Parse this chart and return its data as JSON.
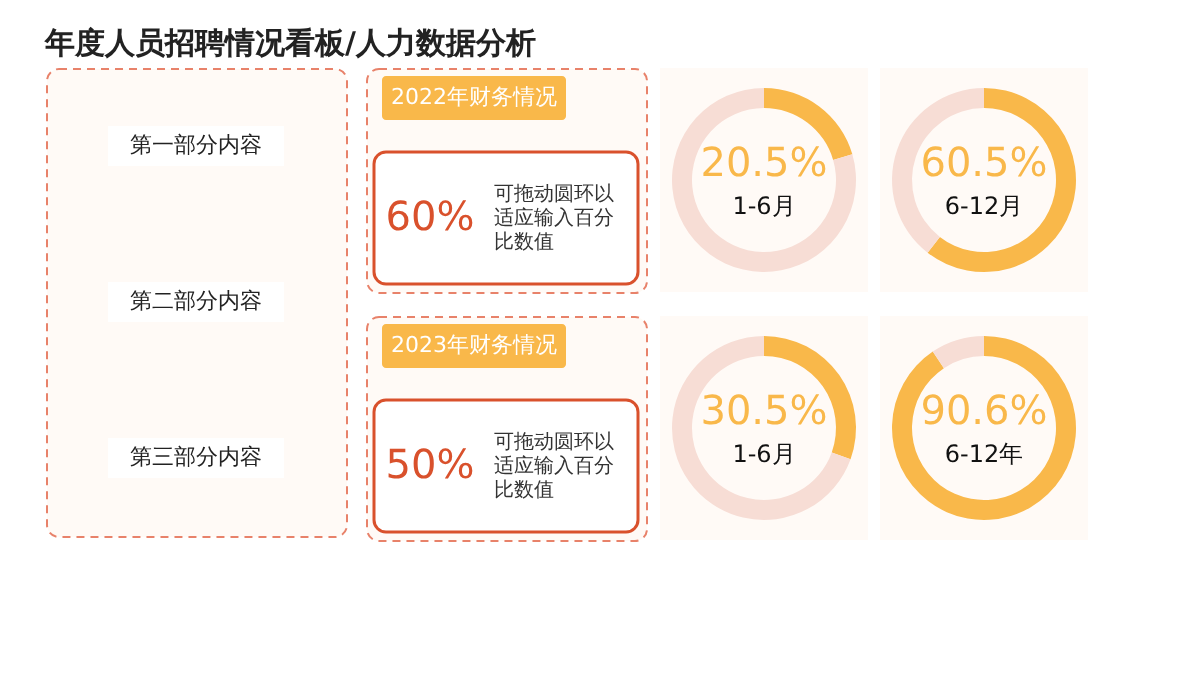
{
  "chart_data": [
    {
      "type": "other",
      "title": "年度人员招聘情况看板/人力数据分析",
      "annotations": [
        "第一部分内容",
        "第二部分内容",
        "第三部分内容"
      ]
    },
    {
      "type": "other",
      "title": "2022年财务情况",
      "annotations": [
        "60%",
        "可拖动圆环以适应输入百分比数值"
      ]
    },
    {
      "type": "donut",
      "categories": [
        "1-6月",
        null
      ],
      "values": [
        20.5,
        79.5
      ],
      "colors": [
        "#f9b84a",
        "#f7ddd5"
      ],
      "value_labels": [
        "20.5%",
        null
      ]
    },
    {
      "type": "donut",
      "categories": [
        "6-12月",
        null
      ],
      "values": [
        60.5,
        39.5
      ],
      "colors": [
        "#f9b84a",
        "#f7ddd5"
      ],
      "value_labels": [
        "60.5%",
        null
      ]
    },
    {
      "type": "other",
      "title": "2023年财务情况",
      "annotations": [
        "50%",
        "可拖动圆环以适应输入百分比数值"
      ]
    },
    {
      "type": "donut",
      "categories": [
        "1-6月",
        null
      ],
      "values": [
        30.5,
        69.5
      ],
      "colors": [
        "#f9b84a",
        "#f7ddd5"
      ],
      "value_labels": [
        "30.5%",
        null
      ]
    },
    {
      "type": "donut",
      "categories": [
        "6-12年",
        null
      ],
      "values": [
        90.6,
        9.4
      ],
      "colors": [
        "#f9b84a",
        "#f7ddd5"
      ],
      "value_labels": [
        "90.6%",
        null
      ]
    }
  ]
}
